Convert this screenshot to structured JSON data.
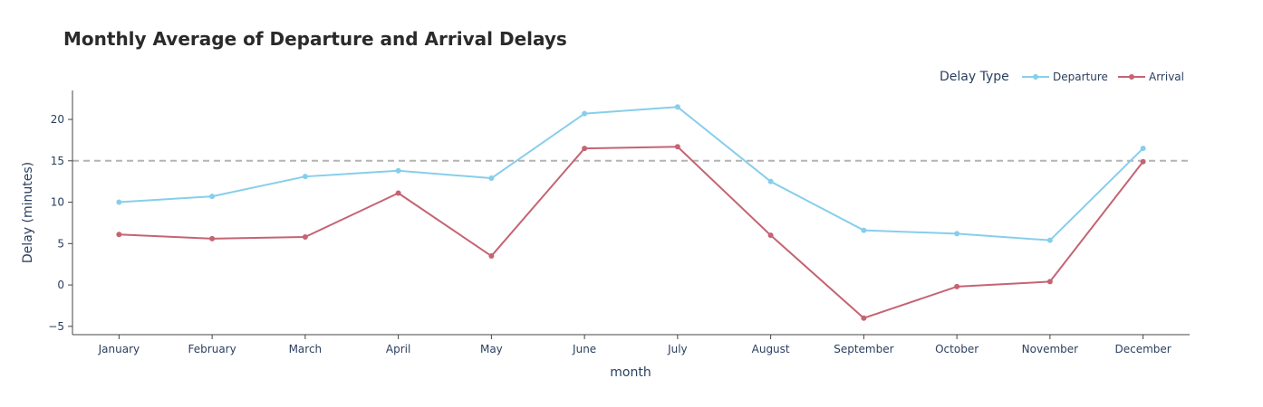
{
  "chart_data": {
    "type": "line",
    "title": "Monthly Average of Departure and Arrival Delays",
    "xlabel": "month",
    "ylabel": "Delay (minutes)",
    "categories": [
      "January",
      "February",
      "March",
      "April",
      "May",
      "June",
      "July",
      "August",
      "September",
      "October",
      "November",
      "December"
    ],
    "ylim": [
      -6,
      23.5
    ],
    "yticks": [
      -5,
      0,
      5,
      10,
      15,
      20
    ],
    "reference_line": {
      "y": 15,
      "style": "dashed",
      "color": "#b3b3b3"
    },
    "legend": {
      "title": "Delay Type",
      "placement": "top-right",
      "orientation": "horizontal"
    },
    "series": [
      {
        "name": "Departure",
        "color": "#87CEEB",
        "values": [
          10.0,
          10.7,
          13.1,
          13.8,
          12.9,
          20.7,
          21.5,
          12.5,
          6.6,
          6.2,
          5.4,
          16.5
        ]
      },
      {
        "name": "Arrival",
        "color": "#C46473",
        "values": [
          6.1,
          5.6,
          5.8,
          11.1,
          3.5,
          16.5,
          16.7,
          6.0,
          -4.0,
          -0.2,
          0.4,
          14.9
        ]
      }
    ]
  }
}
